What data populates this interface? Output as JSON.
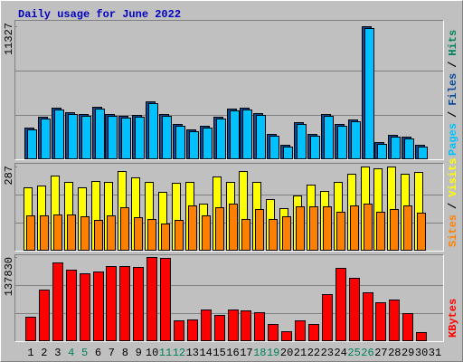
{
  "title": "Daily usage for June 2022",
  "legend_separator": "/",
  "weekend_indices": [
    3,
    4,
    10,
    11,
    17,
    18,
    24,
    25
  ],
  "weekend_color": "#00805c",
  "chart_data": [
    {
      "type": "bar",
      "ylim": [
        0,
        11327
      ],
      "yticks": [
        11327
      ],
      "series": [
        {
          "name": "Pages",
          "color": "#00c0ff",
          "values": [
            2540,
            3470,
            4240,
            3850,
            3700,
            4310,
            3700,
            3540,
            3620,
            4780,
            3700,
            2850,
            2390,
            2700,
            3470,
            4160,
            4240,
            3780,
            2000,
            1080,
            3000,
            2000,
            3700,
            2850,
            3240,
            11200,
            1310,
            1930,
            1770,
            1080,
            null
          ]
        },
        {
          "name": "Files",
          "color": "#0a4a9a",
          "values": [
            2700,
            3620,
            4400,
            4000,
            3850,
            4470,
            3850,
            3700,
            3770,
            4940,
            3850,
            3000,
            2540,
            2850,
            3620,
            4310,
            4400,
            3930,
            2150,
            1230,
            3160,
            2150,
            3850,
            3000,
            3390,
            11327,
            1460,
            2080,
            1930,
            1230,
            null
          ]
        },
        {
          "name": "Hits",
          "color": "#00805c",
          "values": [
            2700,
            3620,
            4400,
            4000,
            3850,
            4470,
            3850,
            3700,
            3770,
            4940,
            3850,
            3000,
            2540,
            2850,
            3620,
            4310,
            4400,
            3930,
            2150,
            1230,
            3160,
            2150,
            3850,
            3000,
            3390,
            11327,
            1460,
            2080,
            1930,
            1230,
            null
          ]
        }
      ]
    },
    {
      "type": "bar",
      "ylim": [
        0,
        287
      ],
      "yticks": [
        287
      ],
      "series": [
        {
          "name": "Sites",
          "color": "#ff8000",
          "values": [
            120,
            120,
            123,
            123,
            117,
            104,
            120,
            149,
            113,
            107,
            94,
            104,
            155,
            120,
            149,
            159,
            107,
            142,
            107,
            117,
            152,
            152,
            152,
            133,
            155,
            159,
            133,
            142,
            155,
            130,
            null
          ]
        },
        {
          "name": "Visits",
          "color": "#ffff00",
          "values": [
            217,
            223,
            255,
            236,
            217,
            239,
            233,
            272,
            249,
            233,
            201,
            230,
            233,
            162,
            252,
            236,
            272,
            233,
            175,
            146,
            188,
            226,
            204,
            236,
            262,
            287,
            282,
            287,
            262,
            268,
            null
          ]
        }
      ]
    },
    {
      "type": "bar",
      "ylim": [
        0,
        137830
      ],
      "yticks": [
        137830
      ],
      "categories": [
        "1",
        "2",
        "3",
        "4",
        "5",
        "6",
        "7",
        "8",
        "9",
        "10",
        "11",
        "12",
        "13",
        "14",
        "15",
        "16",
        "17",
        "18",
        "19",
        "20",
        "21",
        "22",
        "23",
        "24",
        "25",
        "26",
        "27",
        "28",
        "29",
        "30",
        "31"
      ],
      "series": [
        {
          "name": "KBytes",
          "color": "#ff0000",
          "values": [
            40000,
            84500,
            128900,
            117100,
            111200,
            114100,
            123000,
            123000,
            121500,
            137830,
            136500,
            34100,
            35600,
            51900,
            43000,
            51900,
            50400,
            47400,
            28200,
            16300,
            34100,
            28200,
            77100,
            120000,
            103700,
            80000,
            63700,
            68200,
            45900,
            14800,
            null
          ]
        }
      ]
    }
  ]
}
